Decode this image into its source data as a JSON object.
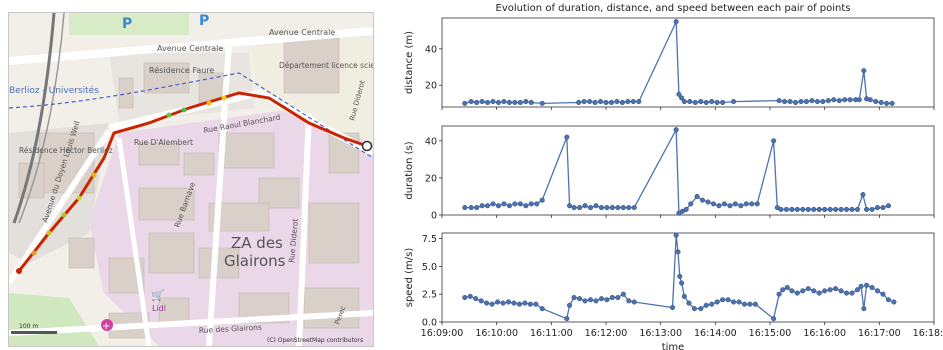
{
  "map": {
    "labels": {
      "avenue_centrale_a": "Avenue Centrale",
      "avenue_centrale_b": "Avenue Centrale",
      "berlioz": "Berlioz - Universités",
      "residence_faure": "Résidence Faure",
      "departement": "Département licence sciences et technologies",
      "residence_berlioz": "Résidence Hector Berlioz",
      "rue_raoul_blanchard": "Rue Raoul Blanchard",
      "rue_dalembert": "Rue D'Alembert",
      "rue_diderot_top": "Rue Diderot",
      "rue_diderot": "Rue Diderot",
      "rue_barnave": "Rue Barnave",
      "za_line1": "ZA des",
      "za_line2": "Glairons",
      "lidl": "Lidl",
      "rue_glairons": "Rue des Glairons",
      "perec": "Perec",
      "avenue_weil": "Avenue du Doyen Louis Weil",
      "parking_a": "P",
      "parking_b": "P",
      "attribution": "(C) OpenStreetMap contributors",
      "scale": "100 m"
    },
    "colors": {
      "land": "#f2efe9",
      "industrial": "#ead7e8",
      "building": "#d9d0c9",
      "road": "#ffffff",
      "track": "#cc2200"
    },
    "icons": [
      "parking-icon",
      "shop-icon",
      "hospital-icon"
    ]
  },
  "chart_data": {
    "type": "line",
    "title": "Evolution of duration, distance, and speed between each pair of points",
    "xlabel": "time",
    "x_ticks": [
      "16:09:00",
      "16:10:00",
      "16:11:00",
      "16:12:00",
      "16:13:00",
      "16:14:00",
      "16:15:00",
      "16:16:00",
      "16:17:00",
      "16:18:00"
    ],
    "x_range_seconds_after_1609": [
      0,
      540
    ],
    "line_color": "#4c72b0",
    "subplots": [
      {
        "name": "distance",
        "ylabel": "distance (m)",
        "ylim": [
          8,
          57
        ],
        "yticks": [
          20,
          40
        ],
        "points": [
          [
            25,
            10
          ],
          [
            32,
            11
          ],
          [
            38,
            10.5
          ],
          [
            44,
            11
          ],
          [
            50,
            10.5
          ],
          [
            56,
            11
          ],
          [
            62,
            10.5
          ],
          [
            68,
            11
          ],
          [
            74,
            10.5
          ],
          [
            80,
            10.5
          ],
          [
            86,
            10.5
          ],
          [
            92,
            11
          ],
          [
            98,
            10.5
          ],
          [
            110,
            10
          ],
          [
            150,
            10.5
          ],
          [
            156,
            11
          ],
          [
            162,
            11
          ],
          [
            168,
            10.5
          ],
          [
            174,
            11
          ],
          [
            180,
            10.5
          ],
          [
            186,
            10.5
          ],
          [
            192,
            11
          ],
          [
            198,
            10.5
          ],
          [
            204,
            11
          ],
          [
            210,
            11
          ],
          [
            216,
            11
          ],
          [
            257,
            55
          ],
          [
            260,
            15
          ],
          [
            263,
            13
          ],
          [
            266,
            11
          ],
          [
            272,
            11
          ],
          [
            278,
            10.5
          ],
          [
            284,
            11
          ],
          [
            290,
            10.5
          ],
          [
            296,
            11
          ],
          [
            302,
            10.5
          ],
          [
            308,
            10.5
          ],
          [
            320,
            11
          ],
          [
            370,
            11.5
          ],
          [
            376,
            11
          ],
          [
            382,
            11
          ],
          [
            388,
            10.5
          ],
          [
            394,
            11
          ],
          [
            400,
            11
          ],
          [
            406,
            11.5
          ],
          [
            412,
            11
          ],
          [
            418,
            11
          ],
          [
            424,
            11.5
          ],
          [
            430,
            12
          ],
          [
            436,
            11.5
          ],
          [
            442,
            12
          ],
          [
            448,
            12
          ],
          [
            454,
            12
          ],
          [
            458,
            12
          ],
          [
            463,
            28
          ],
          [
            466,
            12.5
          ],
          [
            470,
            12
          ],
          [
            476,
            11
          ],
          [
            482,
            10.5
          ],
          [
            488,
            10
          ],
          [
            494,
            10
          ]
        ]
      },
      {
        "name": "duration",
        "ylabel": "duration (s)",
        "ylim": [
          0,
          48
        ],
        "yticks": [
          0,
          20,
          40
        ],
        "points": [
          [
            25,
            4
          ],
          [
            32,
            4
          ],
          [
            38,
            4
          ],
          [
            44,
            5
          ],
          [
            50,
            5
          ],
          [
            56,
            6
          ],
          [
            62,
            5
          ],
          [
            68,
            6
          ],
          [
            74,
            5
          ],
          [
            80,
            6
          ],
          [
            86,
            6
          ],
          [
            92,
            5
          ],
          [
            98,
            6
          ],
          [
            104,
            6
          ],
          [
            110,
            8
          ],
          [
            137,
            42
          ],
          [
            140,
            5
          ],
          [
            145,
            4
          ],
          [
            151,
            4
          ],
          [
            157,
            5
          ],
          [
            163,
            4
          ],
          [
            169,
            5
          ],
          [
            175,
            4
          ],
          [
            181,
            4
          ],
          [
            187,
            4
          ],
          [
            193,
            4
          ],
          [
            199,
            4
          ],
          [
            205,
            4
          ],
          [
            211,
            4
          ],
          [
            257,
            46
          ],
          [
            260,
            1
          ],
          [
            264,
            2
          ],
          [
            268,
            3
          ],
          [
            273,
            6
          ],
          [
            280,
            10
          ],
          [
            286,
            8
          ],
          [
            292,
            7
          ],
          [
            298,
            6
          ],
          [
            304,
            5
          ],
          [
            310,
            6
          ],
          [
            316,
            5
          ],
          [
            322,
            6
          ],
          [
            328,
            5
          ],
          [
            334,
            6
          ],
          [
            340,
            6
          ],
          [
            346,
            6
          ],
          [
            364,
            40
          ],
          [
            368,
            4
          ],
          [
            372,
            3
          ],
          [
            378,
            3
          ],
          [
            384,
            3
          ],
          [
            390,
            3
          ],
          [
            396,
            3
          ],
          [
            402,
            3
          ],
          [
            408,
            3
          ],
          [
            414,
            3
          ],
          [
            420,
            3
          ],
          [
            426,
            3
          ],
          [
            432,
            3
          ],
          [
            438,
            3
          ],
          [
            444,
            3
          ],
          [
            450,
            3
          ],
          [
            456,
            3
          ],
          [
            462,
            11
          ],
          [
            466,
            3
          ],
          [
            472,
            3
          ],
          [
            478,
            4
          ],
          [
            484,
            4
          ],
          [
            490,
            5
          ]
        ]
      },
      {
        "name": "speed",
        "ylabel": "speed (m/s)",
        "ylim": [
          0,
          8
        ],
        "yticks": [
          0.0,
          2.5,
          5.0,
          7.5
        ],
        "ytick_labels": [
          "0.0",
          "2.5",
          "5.0",
          "7.5"
        ],
        "points": [
          [
            25,
            2.2
          ],
          [
            31,
            2.3
          ],
          [
            37,
            2.1
          ],
          [
            43,
            1.9
          ],
          [
            49,
            1.7
          ],
          [
            55,
            1.6
          ],
          [
            61,
            1.8
          ],
          [
            67,
            1.7
          ],
          [
            73,
            1.8
          ],
          [
            79,
            1.7
          ],
          [
            85,
            1.6
          ],
          [
            91,
            1.7
          ],
          [
            97,
            1.6
          ],
          [
            103,
            1.6
          ],
          [
            110,
            1.2
          ],
          [
            137,
            0.3
          ],
          [
            140,
            1.5
          ],
          [
            145,
            2.2
          ],
          [
            151,
            2.1
          ],
          [
            157,
            1.9
          ],
          [
            163,
            2.0
          ],
          [
            169,
            1.9
          ],
          [
            175,
            2.1
          ],
          [
            181,
            2.0
          ],
          [
            187,
            2.2
          ],
          [
            193,
            2.2
          ],
          [
            199,
            2.5
          ],
          [
            205,
            1.9
          ],
          [
            211,
            1.8
          ],
          [
            253,
            1.3
          ],
          [
            257,
            7.8
          ],
          [
            259,
            6.3
          ],
          [
            261,
            4.1
          ],
          [
            263,
            3.5
          ],
          [
            266,
            2.3
          ],
          [
            271,
            1.7
          ],
          [
            277,
            1.2
          ],
          [
            284,
            1.2
          ],
          [
            290,
            1.5
          ],
          [
            296,
            1.6
          ],
          [
            302,
            1.8
          ],
          [
            308,
            2.0
          ],
          [
            314,
            2.0
          ],
          [
            320,
            1.8
          ],
          [
            326,
            1.8
          ],
          [
            332,
            1.6
          ],
          [
            338,
            1.6
          ],
          [
            344,
            1.6
          ],
          [
            364,
            0.3
          ],
          [
            370,
            2.5
          ],
          [
            374,
            2.9
          ],
          [
            379,
            3.1
          ],
          [
            384,
            2.8
          ],
          [
            390,
            2.6
          ],
          [
            396,
            2.8
          ],
          [
            402,
            3.0
          ],
          [
            408,
            2.8
          ],
          [
            414,
            2.6
          ],
          [
            420,
            2.8
          ],
          [
            426,
            2.9
          ],
          [
            432,
            3.0
          ],
          [
            438,
            2.8
          ],
          [
            444,
            2.6
          ],
          [
            450,
            2.6
          ],
          [
            456,
            2.9
          ],
          [
            460,
            3.2
          ],
          [
            463,
            1.2
          ],
          [
            466,
            3.3
          ],
          [
            472,
            3.1
          ],
          [
            478,
            2.8
          ],
          [
            484,
            2.5
          ],
          [
            490,
            2.0
          ],
          [
            496,
            1.8
          ]
        ]
      }
    ]
  }
}
